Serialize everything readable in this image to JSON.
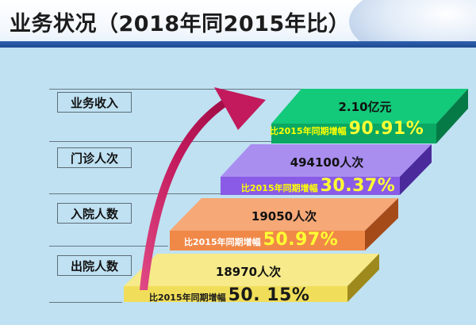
{
  "slide": {
    "title": "业务状况（2018年同2015年比）",
    "growth_label": "比2015年同期增幅"
  },
  "colors": {
    "title_bar": "#2f5fae",
    "background": "#bfe1f2",
    "arrow": "#c21a5c"
  },
  "categories": [
    "业务收入",
    "门诊人次",
    "入院人数",
    "出院人数"
  ],
  "steps": [
    {
      "id": "income",
      "category": "业务收入",
      "value": "2.10亿元",
      "growth": "90.91%",
      "growth_value": 90.91,
      "top": "#13c97a",
      "front": "#0aa862",
      "side": "#067a46",
      "badge": "#12b56a",
      "label_color": "#ffff00",
      "pct_color": "#ffff33"
    },
    {
      "id": "outpatient",
      "category": "门诊人次",
      "value": "494100人次",
      "growth": "30.37%",
      "growth_value": 30.37,
      "top": "#a98ef0",
      "front": "#8a5be6",
      "side": "#4b2a9c",
      "badge": "#8e4fe0",
      "label_color": "#ffff00",
      "pct_color": "#ffff33"
    },
    {
      "id": "admission",
      "category": "入院人数",
      "value": "19050人次",
      "growth": "50.97%",
      "growth_value": 50.97,
      "top": "#f6a877",
      "front": "#f08848",
      "side": "#a54b1a",
      "badge": "#ef7f3c",
      "label_color": "#ffffff",
      "pct_color": "#ffff33"
    },
    {
      "id": "discharge",
      "category": "出院人数",
      "value": "18970人次",
      "growth": "50. 15%",
      "growth_value": 50.15,
      "top": "#f6ea8a",
      "front": "#f0de5a",
      "side": "#9e8a1c",
      "badge": "#efd84a",
      "label_color": "#1a1a1a",
      "pct_color": "#1a1a1a"
    }
  ]
}
